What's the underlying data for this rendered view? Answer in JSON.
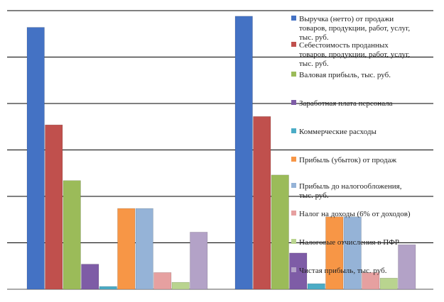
{
  "chart_data": {
    "type": "bar",
    "title": "",
    "xlabel": "",
    "ylabel": "",
    "categories": [
      "",
      ""
    ],
    "ylim": [
      0,
      100
    ],
    "grid": true,
    "legend_position": "right",
    "series": [
      {
        "name": "Выручка (нетто) от продажи товаров, продукции, работ, услуг, тыс. руб.",
        "color": "#4472C4",
        "values": [
          94,
          98
        ]
      },
      {
        "name": "Себестоимость проданных товаров, продукции, работ, услуг, тыс. руб.",
        "color": "#C0504D",
        "values": [
          59,
          62
        ]
      },
      {
        "name": "Валовая прибыль, тыс. руб.",
        "color": "#9BBB59",
        "values": [
          39,
          41
        ]
      },
      {
        "name": "Заработная плата персонала",
        "color": "#7E5CA6",
        "values": [
          9,
          13
        ]
      },
      {
        "name": "Коммерческие расходы",
        "color": "#4BACC6",
        "values": [
          1,
          2
        ]
      },
      {
        "name": "Прибыль (убыток) от продаж",
        "color": "#F79646",
        "values": [
          29,
          26
        ]
      },
      {
        "name": "Прибыль до налогообложения, тыс. руб.",
        "color": "#95B3D7",
        "values": [
          29,
          26
        ]
      },
      {
        "name": "Налог на доходы (6% от доходов)",
        "color": "#E6A0A0",
        "values": [
          6,
          6
        ]
      },
      {
        "name": "Налоговые отчисления в ПФР",
        "color": "#B9D48F",
        "values": [
          2.5,
          4
        ]
      },
      {
        "name": "Чистая прибыль, тыс. руб.",
        "color": "#B3A2C7",
        "values": [
          20.5,
          16
        ]
      }
    ],
    "legend_lines": [
      [
        "Выручка (нетто) от продажи",
        "товаров, продукции, работ, услуг,",
        "тыс. руб."
      ],
      [
        "Себестоимость проданных",
        "товаров, продукции, работ, услуг,",
        "тыс. руб."
      ],
      [
        "Валовая прибыль, тыс. руб."
      ],
      [
        "Заработная плата персонала"
      ],
      [
        "Коммерческие расходы"
      ],
      [
        "Прибыль (убыток) от продаж"
      ],
      [
        "Прибыль до налогообложения,",
        "тыс. руб."
      ],
      [
        "Налог на доходы (6% от доходов)"
      ],
      [
        "Налоговые отчисления в ПФР"
      ],
      [
        "Чистая прибыль, тыс. руб."
      ]
    ]
  }
}
